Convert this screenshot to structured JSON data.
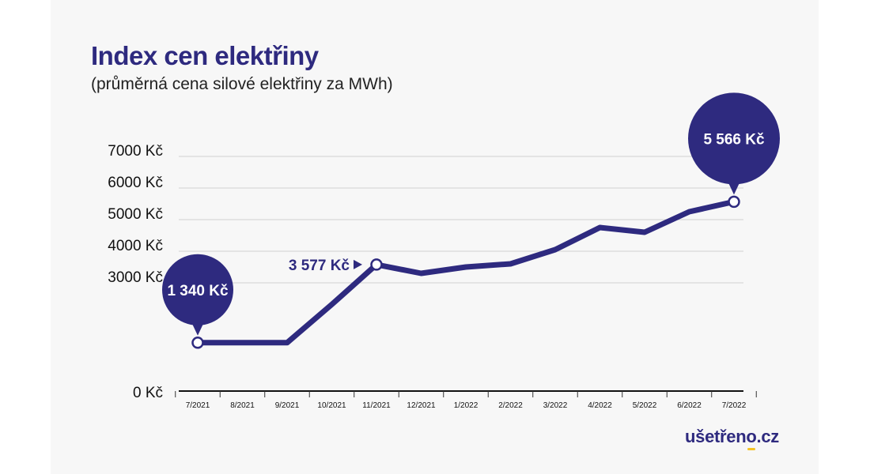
{
  "colors": {
    "accent": "#2e2a7f",
    "grid": "#d0d0d0",
    "axis": "#111111",
    "brand_highlight": "#f3c325"
  },
  "brand": {
    "logo_text_a": "ušetřen",
    "logo_text_o": "o",
    "logo_text_b": ".cz"
  },
  "chart_data": {
    "type": "line",
    "title": "Index cen elektřiny",
    "subtitle": "(průměrná cena silové elektřiny za MWh)",
    "xlabel": "",
    "ylabel": "",
    "categories": [
      "7/2021",
      "8/2021",
      "9/2021",
      "10/2021",
      "11/2021",
      "12/2021",
      "1/2022",
      "2/2022",
      "3/2022",
      "4/2022",
      "5/2022",
      "6/2022",
      "7/2022"
    ],
    "values": [
      1340,
      1340,
      1340,
      2400,
      3577,
      3300,
      3500,
      3600,
      4050,
      4750,
      4600,
      5250,
      5566
    ],
    "yticks": [
      {
        "value": 0,
        "label": "0 Kč"
      },
      {
        "value": 3000,
        "label": "3000 Kč"
      },
      {
        "value": 4000,
        "label": "4000 Kč"
      },
      {
        "value": 5000,
        "label": "5000 Kč"
      },
      {
        "value": 6000,
        "label": "6000 Kč"
      },
      {
        "value": 7000,
        "label": "7000 Kč"
      }
    ],
    "axis_break": "between 0 Kč and 3000 Kč",
    "grid": true,
    "annotations": [
      {
        "index": 0,
        "label": "1 340 Kč",
        "style": "bubble"
      },
      {
        "index": 4,
        "label": "3 577 Kč",
        "style": "arrow"
      },
      {
        "index": 12,
        "label": "5 566 Kč",
        "style": "bubble-large"
      }
    ]
  }
}
